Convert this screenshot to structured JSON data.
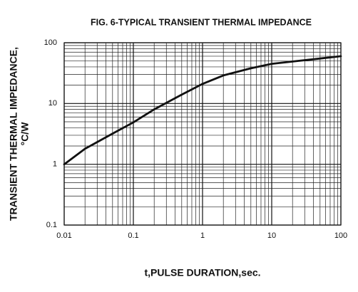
{
  "chart_data": {
    "type": "line",
    "title": "FIG. 6-TYPICAL TRANSIENT THERMAL IMPEDANCE",
    "x_label": "t,PULSE DURATION,sec.",
    "y_label": [
      "TRANSIENT THERMAL IMPEDANCE,",
      "°C/W"
    ],
    "x": [
      0.01,
      0.02,
      0.05,
      0.1,
      0.2,
      0.5,
      1,
      2,
      5,
      10,
      20,
      50,
      100
    ],
    "values": [
      1.0,
      1.8,
      3.2,
      4.9,
      8.0,
      14,
      21,
      29,
      38,
      45,
      49,
      55,
      60
    ],
    "color": "#111111",
    "xlim": [
      0.01,
      100
    ],
    "ylim": [
      0.1,
      100
    ],
    "xticks": [
      0.01,
      0.1,
      1,
      10,
      100
    ],
    "yticks": [
      0.1,
      1,
      10,
      100
    ],
    "x_log": true,
    "y_log": true,
    "grid": true
  }
}
